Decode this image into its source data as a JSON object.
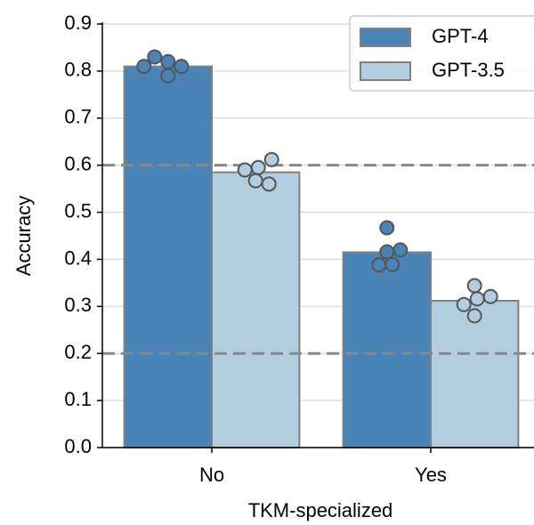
{
  "chart_data": {
    "type": "bar",
    "xlabel": "TKM-specialized",
    "ylabel": "Accuracy",
    "categories": [
      "No",
      "Yes"
    ],
    "series": [
      {
        "name": "GPT-4",
        "color": "#4a83b6",
        "values": [
          0.81,
          0.415
        ],
        "points": [
          [
            0.82,
            0.81,
            0.83,
            0.79,
            0.81
          ],
          [
            0.467,
            0.416,
            0.389,
            0.42,
            0.388
          ]
        ]
      },
      {
        "name": "GPT-3.5",
        "color": "#b3cde0",
        "values": [
          0.585,
          0.312
        ],
        "points": [
          [
            0.567,
            0.595,
            0.59,
            0.56,
            0.612
          ],
          [
            0.344,
            0.316,
            0.304,
            0.321,
            0.28
          ]
        ]
      }
    ],
    "ylim": [
      0,
      0.9
    ],
    "yticks": [
      {
        "value": 0,
        "label": "0.0"
      },
      0.1,
      0.2,
      0.3,
      0.4,
      0.5,
      0.6,
      0.7,
      0.8,
      0.9
    ],
    "reference_lines": [
      0.2,
      0.6
    ],
    "grid": true,
    "legend": "upper right"
  }
}
